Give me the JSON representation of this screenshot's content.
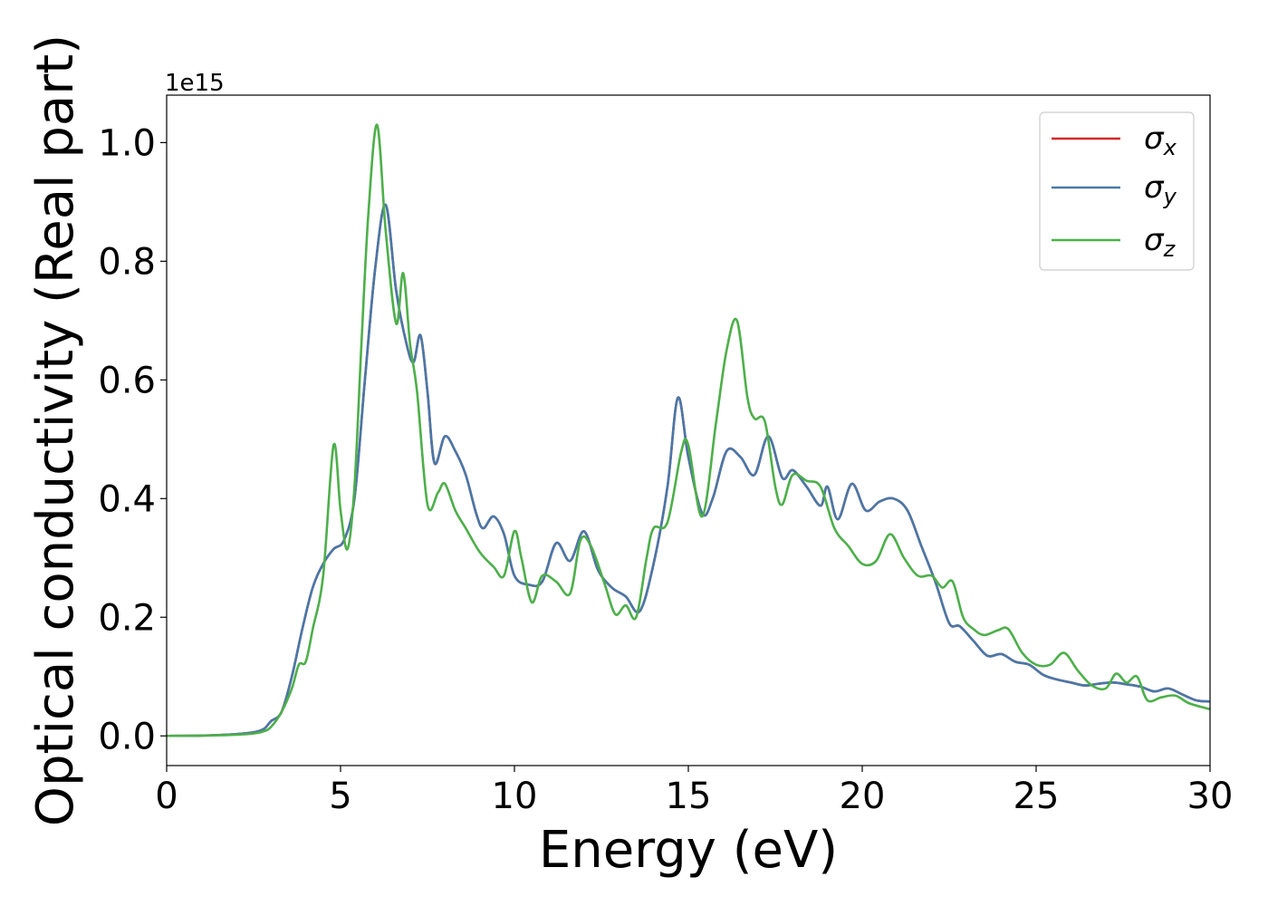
{
  "chart_data": {
    "type": "line",
    "title": "",
    "xlabel": "Energy (eV)",
    "ylabel": "Optical conductivity (Real part)",
    "offset_text": "1e15",
    "xlim": [
      0,
      30
    ],
    "ylim": [
      -0.05,
      1.08
    ],
    "xticks": [
      0,
      5,
      10,
      15,
      20,
      25,
      30
    ],
    "xtick_labels": [
      "0",
      "5",
      "10",
      "15",
      "20",
      "25",
      "30"
    ],
    "yticks": [
      0.0,
      0.2,
      0.4,
      0.6,
      0.8,
      1.0
    ],
    "ytick_labels": [
      "0.0",
      "0.2",
      "0.4",
      "0.6",
      "0.8",
      "1.0"
    ],
    "grid": false,
    "legend_position": "top-right",
    "series": [
      {
        "name": "σx",
        "symbol": "σ",
        "subscript": "x",
        "color": "#d62728",
        "x": [
          0,
          1,
          2,
          2.5,
          2.8,
          3.0,
          3.3,
          3.6,
          3.9,
          4.2,
          4.5,
          4.8,
          5.1,
          5.4,
          5.7,
          6.0,
          6.3,
          6.6,
          6.9,
          7.1,
          7.3,
          7.5,
          7.7,
          8.0,
          8.3,
          8.6,
          8.9,
          9.1,
          9.4,
          9.7,
          10.0,
          10.4,
          10.8,
          11.2,
          11.6,
          12.0,
          12.4,
          12.8,
          13.2,
          13.6,
          14.0,
          14.4,
          14.7,
          15.0,
          15.4,
          15.7,
          16.1,
          16.5,
          16.9,
          17.3,
          17.7,
          18.0,
          18.4,
          18.8,
          19.0,
          19.3,
          19.7,
          20.1,
          20.5,
          20.9,
          21.3,
          21.7,
          22.1,
          22.5,
          22.8,
          23.2,
          23.6,
          24.0,
          24.4,
          24.8,
          25.2,
          25.6,
          26.0,
          26.4,
          26.8,
          27.2,
          27.6,
          28.0,
          28.4,
          28.8,
          29.2,
          29.6,
          30
        ],
        "y": [
          0,
          0.0005,
          0.003,
          0.006,
          0.012,
          0.025,
          0.04,
          0.1,
          0.18,
          0.25,
          0.29,
          0.315,
          0.33,
          0.4,
          0.6,
          0.79,
          0.895,
          0.75,
          0.66,
          0.63,
          0.675,
          0.58,
          0.46,
          0.505,
          0.48,
          0.44,
          0.375,
          0.35,
          0.37,
          0.34,
          0.27,
          0.255,
          0.26,
          0.325,
          0.295,
          0.345,
          0.28,
          0.25,
          0.235,
          0.21,
          0.29,
          0.42,
          0.57,
          0.47,
          0.375,
          0.4,
          0.48,
          0.47,
          0.44,
          0.505,
          0.435,
          0.448,
          0.42,
          0.388,
          0.42,
          0.365,
          0.425,
          0.38,
          0.395,
          0.4,
          0.38,
          0.32,
          0.26,
          0.19,
          0.185,
          0.16,
          0.135,
          0.138,
          0.125,
          0.12,
          0.103,
          0.095,
          0.09,
          0.085,
          0.088,
          0.09,
          0.087,
          0.083,
          0.075,
          0.08,
          0.07,
          0.06,
          0.058
        ]
      },
      {
        "name": "σy",
        "symbol": "σ",
        "subscript": "y",
        "color": "#4878a8",
        "x": [
          0,
          1,
          2,
          2.5,
          2.8,
          3.0,
          3.3,
          3.6,
          3.9,
          4.2,
          4.5,
          4.8,
          5.1,
          5.4,
          5.7,
          6.0,
          6.3,
          6.6,
          6.9,
          7.1,
          7.3,
          7.5,
          7.7,
          8.0,
          8.3,
          8.6,
          8.9,
          9.1,
          9.4,
          9.7,
          10.0,
          10.4,
          10.8,
          11.2,
          11.6,
          12.0,
          12.4,
          12.8,
          13.2,
          13.6,
          14.0,
          14.4,
          14.7,
          15.0,
          15.4,
          15.7,
          16.1,
          16.5,
          16.9,
          17.3,
          17.7,
          18.0,
          18.4,
          18.8,
          19.0,
          19.3,
          19.7,
          20.1,
          20.5,
          20.9,
          21.3,
          21.7,
          22.1,
          22.5,
          22.8,
          23.2,
          23.6,
          24.0,
          24.4,
          24.8,
          25.2,
          25.6,
          26.0,
          26.4,
          26.8,
          27.2,
          27.6,
          28.0,
          28.4,
          28.8,
          29.2,
          29.6,
          30
        ],
        "y": [
          0,
          0.0005,
          0.003,
          0.006,
          0.012,
          0.025,
          0.04,
          0.1,
          0.18,
          0.25,
          0.29,
          0.315,
          0.33,
          0.4,
          0.6,
          0.79,
          0.895,
          0.75,
          0.66,
          0.63,
          0.675,
          0.58,
          0.46,
          0.505,
          0.48,
          0.44,
          0.375,
          0.35,
          0.37,
          0.34,
          0.27,
          0.255,
          0.26,
          0.325,
          0.295,
          0.345,
          0.28,
          0.25,
          0.235,
          0.21,
          0.29,
          0.42,
          0.57,
          0.47,
          0.375,
          0.4,
          0.48,
          0.47,
          0.44,
          0.505,
          0.435,
          0.448,
          0.42,
          0.388,
          0.42,
          0.365,
          0.425,
          0.38,
          0.395,
          0.4,
          0.38,
          0.32,
          0.26,
          0.19,
          0.185,
          0.16,
          0.135,
          0.138,
          0.125,
          0.12,
          0.103,
          0.095,
          0.09,
          0.085,
          0.088,
          0.09,
          0.087,
          0.083,
          0.075,
          0.08,
          0.07,
          0.06,
          0.058
        ]
      },
      {
        "name": "σz",
        "symbol": "σ",
        "subscript": "z",
        "color": "#4daf4a",
        "x": [
          0,
          1,
          2,
          2.5,
          2.8,
          3.0,
          3.3,
          3.6,
          3.8,
          4.0,
          4.2,
          4.5,
          4.8,
          5.0,
          5.2,
          5.4,
          5.6,
          5.8,
          6.05,
          6.3,
          6.6,
          6.8,
          7.0,
          7.2,
          7.5,
          7.8,
          8.0,
          8.3,
          8.6,
          9.0,
          9.4,
          9.7,
          10.0,
          10.2,
          10.5,
          10.8,
          11.2,
          11.6,
          11.9,
          12.2,
          12.6,
          12.9,
          13.2,
          13.5,
          13.8,
          14.0,
          14.4,
          14.8,
          15.0,
          15.4,
          15.8,
          16.1,
          16.4,
          16.7,
          16.9,
          17.2,
          17.5,
          17.7,
          18.0,
          18.4,
          18.8,
          19.2,
          19.6,
          20.0,
          20.4,
          20.8,
          21.2,
          21.6,
          22.0,
          22.3,
          22.6,
          22.9,
          23.2,
          23.5,
          23.9,
          24.2,
          24.6,
          25.0,
          25.4,
          25.8,
          26.2,
          26.6,
          27.0,
          27.3,
          27.6,
          27.9,
          28.2,
          28.6,
          29.0,
          29.4,
          30
        ],
        "y": [
          0,
          0.0005,
          0.002,
          0.004,
          0.008,
          0.015,
          0.04,
          0.08,
          0.12,
          0.125,
          0.18,
          0.27,
          0.49,
          0.38,
          0.315,
          0.42,
          0.66,
          0.88,
          1.03,
          0.85,
          0.695,
          0.78,
          0.66,
          0.58,
          0.39,
          0.41,
          0.425,
          0.38,
          0.35,
          0.31,
          0.285,
          0.27,
          0.345,
          0.3,
          0.225,
          0.27,
          0.26,
          0.24,
          0.33,
          0.32,
          0.255,
          0.205,
          0.22,
          0.2,
          0.3,
          0.35,
          0.36,
          0.48,
          0.49,
          0.37,
          0.53,
          0.65,
          0.7,
          0.57,
          0.535,
          0.53,
          0.42,
          0.39,
          0.44,
          0.43,
          0.42,
          0.35,
          0.32,
          0.29,
          0.295,
          0.34,
          0.3,
          0.27,
          0.27,
          0.25,
          0.26,
          0.2,
          0.18,
          0.17,
          0.178,
          0.18,
          0.14,
          0.12,
          0.12,
          0.14,
          0.11,
          0.085,
          0.08,
          0.105,
          0.09,
          0.1,
          0.06,
          0.065,
          0.068,
          0.055,
          0.045
        ]
      }
    ]
  }
}
